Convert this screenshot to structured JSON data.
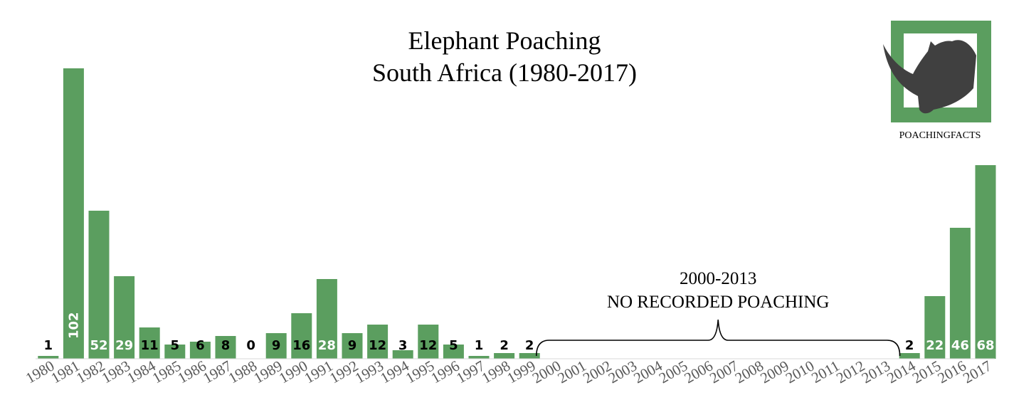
{
  "chart_data": {
    "type": "bar",
    "title": "Elephant Poaching",
    "subtitle": "South Africa (1980-2017)",
    "categories": [
      "1980",
      "1981",
      "1982",
      "1983",
      "1984",
      "1985",
      "1986",
      "1987",
      "1988",
      "1989",
      "1990",
      "1991",
      "1992",
      "1993",
      "1994",
      "1995",
      "1996",
      "1997",
      "1998",
      "1999",
      "2000",
      "2001",
      "2002",
      "2003",
      "2004",
      "2005",
      "2006",
      "2007",
      "2008",
      "2009",
      "2010",
      "2011",
      "2012",
      "2013",
      "2014",
      "2015",
      "2016",
      "2017"
    ],
    "values": [
      1,
      102,
      52,
      29,
      11,
      5,
      6,
      8,
      0,
      9,
      16,
      28,
      9,
      12,
      3,
      12,
      5,
      1,
      2,
      2,
      0,
      0,
      0,
      0,
      0,
      0,
      0,
      0,
      0,
      0,
      0,
      0,
      0,
      0,
      2,
      22,
      46,
      68
    ],
    "labels": [
      "1",
      "102",
      "52",
      "29",
      "11",
      "5",
      "6",
      "8",
      "0",
      "9",
      "16",
      "28",
      "9",
      "12",
      "3",
      "12",
      "5",
      "1",
      "2",
      "2",
      "",
      "",
      "",
      "",
      "",
      "",
      "",
      "",
      "",
      "",
      "",
      "",
      "",
      "",
      "2",
      "22",
      "46",
      "68"
    ],
    "ylim": [
      0,
      105
    ],
    "grid": false,
    "bar_color": "#5b9e5f",
    "annotation": {
      "line1": "2000-2013",
      "line2": "NO RECORDED POACHING",
      "from": "2000",
      "to": "2013"
    }
  },
  "logo": {
    "text": "POACHINGFACTS",
    "icon": "rhino-head-icon",
    "bg_color": "#5b9e5f",
    "icon_color": "#404040"
  }
}
